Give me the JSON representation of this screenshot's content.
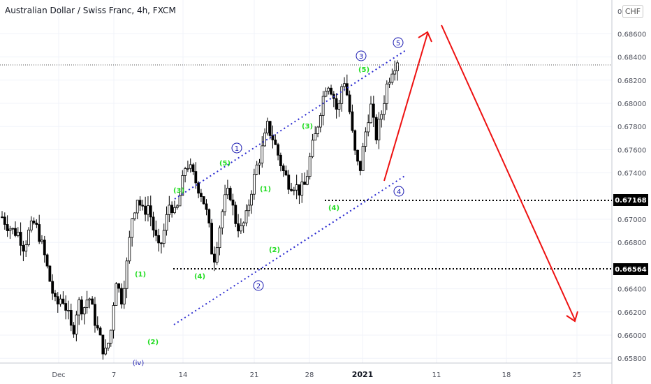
{
  "header": {
    "title": "Australian Dollar / Swiss Franc, 4h, FXCM",
    "currency_button": "CHF"
  },
  "colors": {
    "candle": "#000000",
    "wave_minor": "#22dd22",
    "wave_major": "#1818b0",
    "channel": "#2a2ad0",
    "arrows": "#ee1111",
    "level_bg": "#000000"
  },
  "chart_data": {
    "type": "candlestick",
    "symbol": "AUDCHF",
    "timeframe": "4h",
    "source": "FXCM",
    "x_tick_labels": [
      "Dec",
      "7",
      "14",
      "21",
      "28",
      "2021",
      "11",
      "18",
      "25"
    ],
    "y_tick_labels": [
      "0.",
      "0.68600",
      "0.68400",
      "0.68200",
      "0.68000",
      "0.67800",
      "0.67600",
      "0.67400",
      "0.67000",
      "0.66800",
      "0.66400",
      "0.66200",
      "0.66000",
      "0.65800"
    ],
    "y_range": [
      0.6575,
      0.688
    ],
    "price_path": [
      0.6702,
      0.6695,
      0.669,
      0.6688,
      0.6676,
      0.669,
      0.6697,
      0.6684,
      0.6665,
      0.6643,
      0.6624,
      0.6634,
      0.6621,
      0.66,
      0.6629,
      0.6622,
      0.6635,
      0.6615,
      0.6598,
      0.6583,
      0.66,
      0.665,
      0.663,
      0.666,
      0.6702,
      0.6719,
      0.6706,
      0.6712,
      0.669,
      0.6672,
      0.6692,
      0.6716,
      0.6702,
      0.6724,
      0.675,
      0.674,
      0.673,
      0.672,
      0.67,
      0.6662,
      0.669,
      0.6715,
      0.6725,
      0.67,
      0.669,
      0.67,
      0.6725,
      0.6745,
      0.676,
      0.678,
      0.677,
      0.6755,
      0.674,
      0.6731,
      0.673,
      0.6724,
      0.673,
      0.6757,
      0.6775,
      0.68,
      0.682,
      0.681,
      0.679,
      0.6825,
      0.68,
      0.676,
      0.674,
      0.6772,
      0.68,
      0.677,
      0.679,
      0.6815,
      0.683,
      0.6838
    ],
    "price_levels": [
      {
        "value": "0.67168",
        "price": 0.67168
      },
      {
        "value": "0.66564",
        "price": 0.66564
      }
    ],
    "wave_labels_minor": [
      "(1)",
      "(2)",
      "(3)",
      "(4)",
      "(5)",
      "(1)",
      "(2)",
      "(3)",
      "(4)",
      "(5)"
    ],
    "wave_labels_major": [
      "1",
      "2",
      "3",
      "4",
      "5"
    ],
    "partial_label": "(iv)"
  }
}
